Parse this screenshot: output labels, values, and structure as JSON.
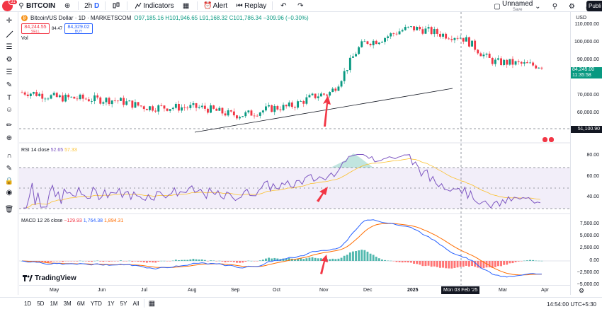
{
  "topbar": {
    "badge": "31",
    "symbol": "BITCOIN",
    "interval": "2h",
    "interval_flag": "D",
    "indicators_label": "Indicators",
    "alert_label": "Alert",
    "replay_label": "Replay",
    "layout_name": "Unnamed",
    "layout_status": "Save",
    "publish_label": "Publi"
  },
  "legend": {
    "title": "Bitcoin/US Dollar · 1D · MARKETSCOM",
    "ohlc": "O97,185.16  H101,946.65  L91,168.32  C101,786.34  −309.96 (−0.30%)",
    "sell_price": "84,244.55",
    "sell_label": "SELL",
    "spread": "84.47",
    "buy_price": "84,329.02",
    "buy_label": "BUY",
    "vol_label": "Vol"
  },
  "rsi": {
    "title": "RSI 14 close",
    "value": "52.65",
    "ma_value": "57.33",
    "levels": [
      "80.00",
      "60.00",
      "40.00"
    ]
  },
  "macd": {
    "title": "MACD 12 26 close",
    "hist": "−129.93",
    "macd": "1,764.38",
    "signal": "1,894.31",
    "levels": [
      "7,500.00",
      "5,000.00",
      "2,500.00",
      "0.00",
      "−2,500.00",
      "−5,000.00"
    ]
  },
  "price_axis": {
    "currency": "USD",
    "levels": [
      "110,000.00",
      "100,000.00",
      "90,000.00",
      "80,000.00",
      "70,000.00",
      "60,000.00"
    ],
    "last_price": "84,245.00",
    "countdown": "11:35:58",
    "crosshair_price": "51,100.90"
  },
  "time_axis": {
    "labels": [
      "May",
      "Jun",
      "Jul",
      "Aug",
      "Sep",
      "Oct",
      "Nov",
      "Dec",
      "2025",
      "Mar",
      "Apr"
    ],
    "crosshair_date": "Mon 03 Feb '25"
  },
  "bottom": {
    "ranges": [
      "1D",
      "5D",
      "1M",
      "3M",
      "6M",
      "YTD",
      "1Y",
      "5Y",
      "All"
    ],
    "clock": "14:54:00 UTC+5:30"
  },
  "brand": "TradingView",
  "colors": {
    "up": "#089981",
    "down": "#f23645",
    "rsi": "#7e57c2",
    "macd": "#2962ff",
    "signal": "#ff6d00",
    "arrow": "#f23645"
  },
  "chart_data": {
    "type": "candlestick",
    "title": "Bitcoin/US Dollar · 1D · MARKETSCOM",
    "ylim": [
      45000,
      112000
    ],
    "close_series": [
      {
        "month": "Apr",
        "close": 70000
      },
      {
        "month": "May",
        "close": 67000
      },
      {
        "month": "Jun",
        "close": 66000
      },
      {
        "month": "Jul",
        "close": 62000
      },
      {
        "month": "Aug",
        "close": 62000
      },
      {
        "month": "Sep",
        "close": 58000
      },
      {
        "month": "Oct",
        "close": 62000
      },
      {
        "month": "Nov",
        "close": 69000
      },
      {
        "month": "Dec",
        "close": 97000
      },
      {
        "month": "2025",
        "close": 104000
      },
      {
        "month": "Feb",
        "close": 100000
      },
      {
        "month": "Mar",
        "close": 86000
      },
      {
        "month": "Apr",
        "close": 84245
      }
    ]
  }
}
